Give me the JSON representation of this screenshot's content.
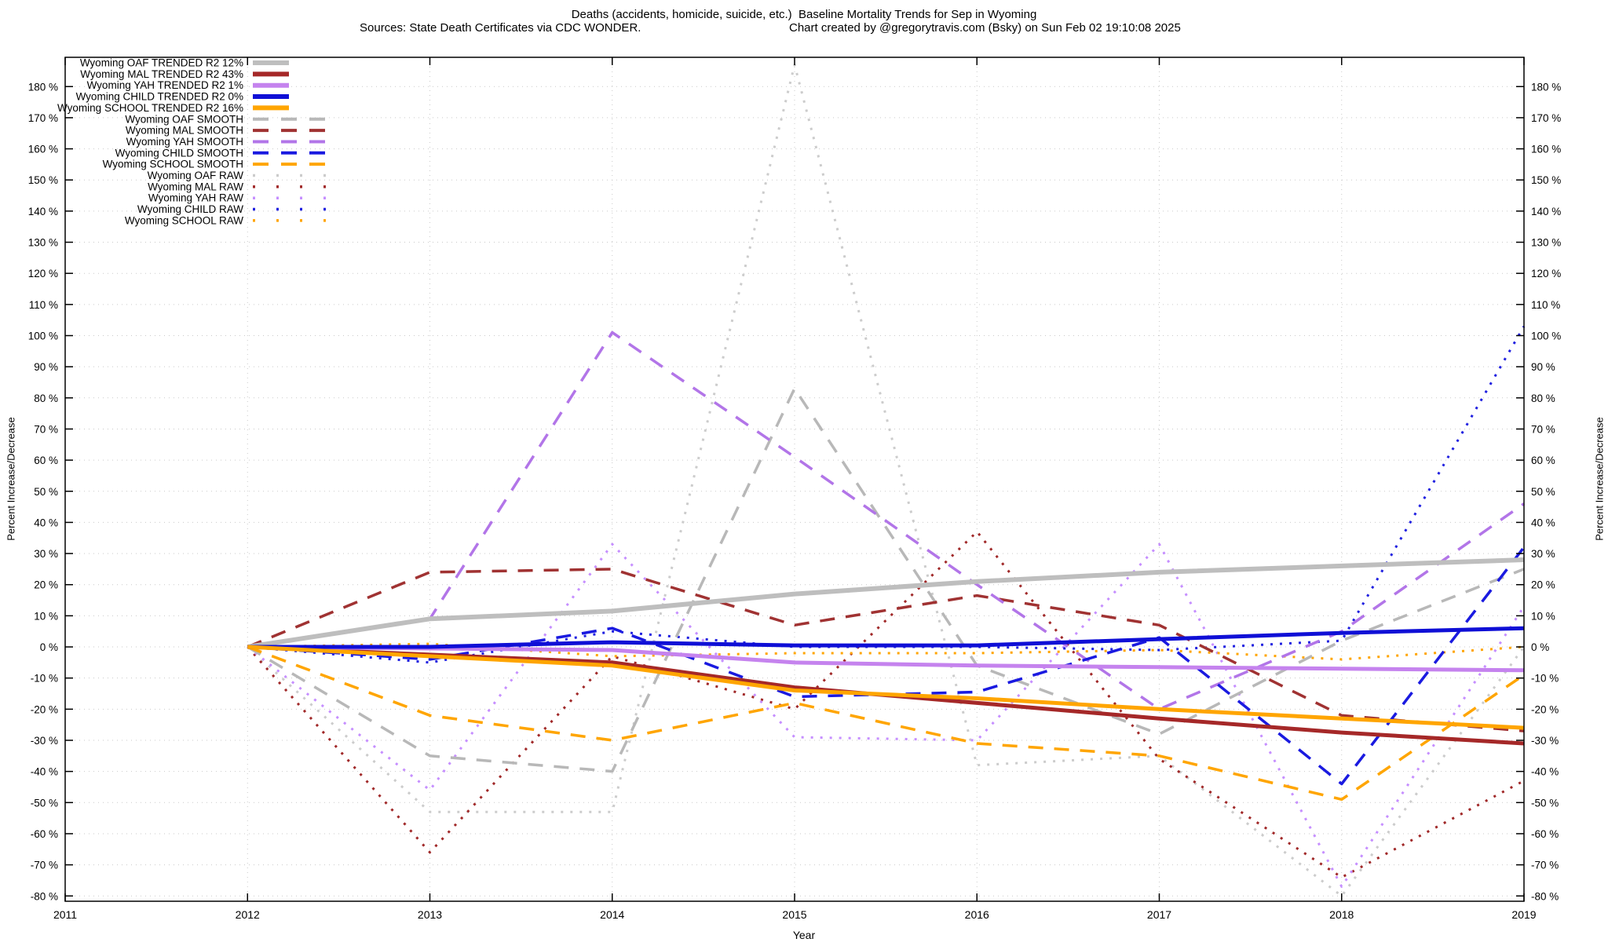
{
  "header": {
    "title": "Deaths (accidents, homicide, suicide, etc.)  Baseline Mortality Trends for Sep in Wyoming",
    "sources": "Sources: State Death Certificates via CDC WONDER.",
    "credit": "Chart created by @gregorytravis.com (Bsky) on Sun Feb 02 19:10:08 2025"
  },
  "chart_data": {
    "type": "line",
    "title": "Deaths (accidents, homicide, suicide, etc.)  Baseline Mortality Trends for Sep in Wyoming",
    "xlabel": "Year",
    "ylabel_left": "Percent Increase/Decrease",
    "ylabel_right": "Percent Increase/Decrease",
    "x_ticks": [
      2011,
      2012,
      2013,
      2014,
      2015,
      2016,
      2017,
      2018,
      2019
    ],
    "y_ticks": [
      -80,
      -70,
      -60,
      -50,
      -40,
      -30,
      -20,
      -10,
      0,
      10,
      20,
      30,
      40,
      50,
      60,
      70,
      80,
      90,
      100,
      110,
      120,
      130,
      140,
      150,
      160,
      170,
      180
    ],
    "y_tick_suffix": " %",
    "xlim": [
      2011,
      2019
    ],
    "ylim": [
      -81.7,
      189.4
    ],
    "grid": true,
    "legend_position": "top-left",
    "years": [
      2012,
      2013,
      2014,
      2015,
      2016,
      2017,
      2018,
      2019
    ],
    "series": [
      {
        "id": "oaf-raw",
        "label": "Wyoming OAF RAW",
        "style": "raw",
        "color": "#cccccc",
        "width": 3,
        "values": [
          0,
          -53,
          -53,
          187,
          -38,
          -35,
          -80,
          0
        ]
      },
      {
        "id": "mal-raw",
        "label": "Wyoming MAL RAW",
        "style": "raw",
        "color": "#a02828",
        "width": 3,
        "values": [
          0,
          -66,
          -3,
          -20,
          37,
          -36,
          -74,
          -43
        ]
      },
      {
        "id": "yah-raw",
        "label": "Wyoming YAH RAW",
        "style": "raw",
        "color": "#c68fff",
        "width": 3,
        "values": [
          0,
          -46,
          33,
          -29,
          -30,
          33,
          -77,
          13
        ]
      },
      {
        "id": "child-raw",
        "label": "Wyoming CHILD RAW",
        "style": "raw",
        "color": "#2020e0",
        "width": 3,
        "values": [
          0,
          -5,
          5,
          0,
          0,
          -1,
          2,
          103
        ]
      },
      {
        "id": "school-raw",
        "label": "Wyoming SCHOOL RAW",
        "style": "raw",
        "color": "#ffa500",
        "width": 3,
        "values": [
          0,
          1,
          -3,
          -2,
          -2,
          -1,
          -4,
          0
        ]
      },
      {
        "id": "oaf-smooth",
        "label": "Wyoming OAF SMOOTH",
        "style": "smooth",
        "color": "#b8b8b8",
        "width": 3.5,
        "values": [
          0,
          -35,
          -40,
          83,
          -6,
          -28,
          2,
          25
        ]
      },
      {
        "id": "mal-smooth",
        "label": "Wyoming MAL SMOOTH",
        "style": "smooth",
        "color": "#a03232",
        "width": 3.5,
        "values": [
          0,
          24,
          25,
          7,
          16.5,
          7,
          -22,
          -27
        ]
      },
      {
        "id": "yah-smooth",
        "label": "Wyoming YAH SMOOTH",
        "style": "smooth",
        "color": "#b275e8",
        "width": 3.5,
        "values": [
          0,
          9,
          101,
          61,
          20,
          -20,
          5,
          46
        ]
      },
      {
        "id": "child-smooth",
        "label": "Wyoming CHILD SMOOTH",
        "style": "smooth",
        "color": "#1a1ae0",
        "width": 3.5,
        "values": [
          0,
          -4,
          6,
          -16,
          -14.5,
          3,
          -44,
          32
        ]
      },
      {
        "id": "school-smooth",
        "label": "Wyoming SCHOOL SMOOTH",
        "style": "smooth",
        "color": "#ffa500",
        "width": 3.5,
        "values": [
          0,
          -22,
          -30,
          -18,
          -31,
          -35,
          -49,
          -9
        ]
      },
      {
        "id": "oaf-trended",
        "label": "Wyoming OAF TRENDED R2  12%",
        "style": "trend",
        "color": "#bebebe",
        "width": 6,
        "values": [
          0,
          9,
          11.5,
          17,
          21,
          24,
          26,
          28
        ]
      },
      {
        "id": "mal-trended",
        "label": "Wyoming MAL TRENDED R2  43%",
        "style": "trend",
        "color": "#a52828",
        "width": 5,
        "values": [
          0,
          -2.5,
          -5,
          -13,
          -18,
          -23,
          -27.5,
          -31
        ]
      },
      {
        "id": "yah-trended",
        "label": "Wyoming YAH TRENDED R2   1%",
        "style": "trend",
        "color": "#c583ee",
        "width": 5,
        "values": [
          0,
          -0.5,
          -1,
          -5,
          -6,
          -6.5,
          -7,
          -7.5
        ]
      },
      {
        "id": "child-trended",
        "label": "Wyoming CHILD TRENDED R2   0%",
        "style": "trend",
        "color": "#0f0fd6",
        "width": 5,
        "values": [
          0,
          0,
          1.5,
          0.5,
          0.5,
          2.5,
          4.5,
          6
        ]
      },
      {
        "id": "school-trended",
        "label": "Wyoming SCHOOL TRENDED R2  16%",
        "style": "trend",
        "color": "#ffa500",
        "width": 5,
        "values": [
          0,
          -3,
          -6,
          -14,
          -16.5,
          -20,
          -23,
          -26
        ]
      }
    ],
    "legend_order": [
      "oaf-trended",
      "mal-trended",
      "yah-trended",
      "child-trended",
      "school-trended",
      "oaf-smooth",
      "mal-smooth",
      "yah-smooth",
      "child-smooth",
      "school-smooth",
      "oaf-raw",
      "mal-raw",
      "yah-raw",
      "child-raw",
      "school-raw"
    ]
  }
}
